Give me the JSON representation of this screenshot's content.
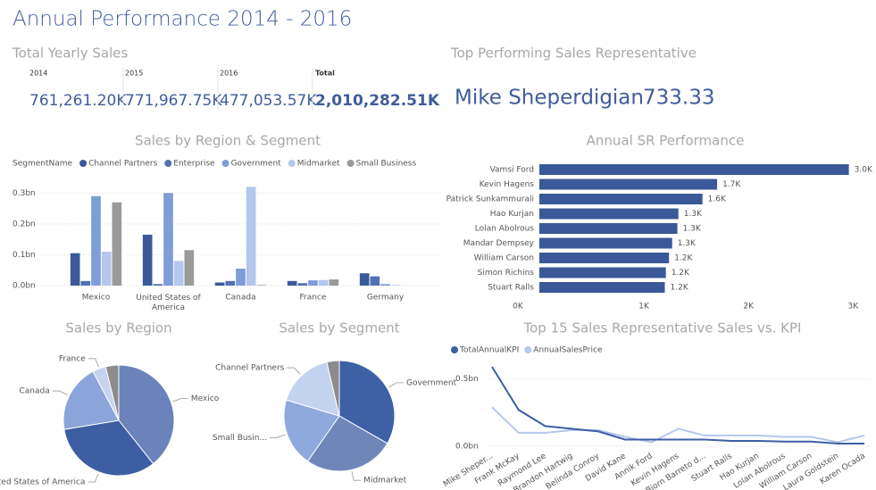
{
  "header": {
    "title": "Annual Performance 2014 - 2016"
  },
  "yearly_sales": {
    "title": "Total Yearly Sales",
    "cards": [
      {
        "label": "2014",
        "value": "761,261.20K"
      },
      {
        "label": "2015",
        "value": "771,967.75K"
      },
      {
        "label": "2016",
        "value": "477,053.57K"
      },
      {
        "label": "Total",
        "value": "2,010,282.51K"
      }
    ]
  },
  "top_rep": {
    "title": "Top Performing Sales Representative",
    "name": "Mike Sheperdigian",
    "value": "733.33"
  },
  "chart_data": [
    {
      "type": "bar",
      "title": "Sales by Region & Segment",
      "legend_title": "SegmentName",
      "categories": [
        "Mexico",
        "United States of America",
        "Canada",
        "France",
        "Germany"
      ],
      "series": [
        {
          "name": "Channel Partners",
          "color": "#3b5998",
          "values": [
            0.105,
            0.165,
            0.01,
            0.015,
            0.04
          ]
        },
        {
          "name": "Enterprise",
          "color": "#5272b2",
          "values": [
            0.015,
            0.005,
            0.015,
            0.008,
            0.03
          ]
        },
        {
          "name": "Government",
          "color": "#7f9dd6",
          "values": [
            0.29,
            0.3,
            0.055,
            0.017,
            0.005
          ]
        },
        {
          "name": "Midmarket",
          "color": "#b4c7ec",
          "values": [
            0.11,
            0.08,
            0.32,
            0.018,
            0.002
          ]
        },
        {
          "name": "Small Business",
          "color": "#9a9a9a",
          "values": [
            0.27,
            0.115,
            0.002,
            0.02,
            0
          ]
        }
      ],
      "ylim": [
        0,
        0.35
      ],
      "yticks": [
        {
          "value": 0,
          "label": "0.0bn"
        },
        {
          "value": 0.1,
          "label": "0.1bn"
        },
        {
          "value": 0.2,
          "label": "0.2bn"
        },
        {
          "value": 0.3,
          "label": "0.3bn"
        }
      ],
      "grid": true
    },
    {
      "type": "hbar",
      "title": "Annual SR Performance",
      "color": "#3b5998",
      "categories": [
        "Vamsi Ford",
        "Kevin Hagens",
        "Patrick Sunkammurali",
        "Hao Kurjan",
        "Lolan Abolrous",
        "Mandar Dempsey",
        "William Carson",
        "Simon Richins",
        "Stuart Ralls"
      ],
      "values": [
        2960,
        1700,
        1560,
        1330,
        1320,
        1270,
        1240,
        1210,
        1200
      ],
      "value_labels": [
        "3.0K",
        "1.7K",
        "1.6K",
        "1.3K",
        "1.3K",
        "1.3K",
        "1.2K",
        "1.2K",
        "1.2K"
      ],
      "xlim": [
        0,
        3040
      ],
      "xticks": [
        {
          "value": 0,
          "label": "0K"
        },
        {
          "value": 1000,
          "label": "1K"
        },
        {
          "value": 2000,
          "label": "2K"
        },
        {
          "value": 3000,
          "label": "3K"
        }
      ],
      "grid": false
    },
    {
      "type": "pie",
      "title": "Sales by Region",
      "categories": [
        "Mexico",
        "United States of America",
        "Canada",
        "France",
        null
      ],
      "values": [
        0.79,
        0.665,
        0.4,
        0.078,
        0.077
      ],
      "colors": [
        "#6a83ba",
        "#3e5ea3",
        "#8aa5da",
        "#c5d3ef",
        "#8c8c8c"
      ]
    },
    {
      "type": "pie",
      "title": "Sales by Segment",
      "categories": [
        "Government",
        "Midmarket",
        "Small Busin...",
        "Channel Partners",
        null
      ],
      "values": [
        0.667,
        0.53,
        0.4,
        0.335,
        0.073
      ],
      "colors": [
        "#3e61a6",
        "#6f87b8",
        "#8ea9dc",
        "#c3d2ef",
        "#8c8c8c"
      ]
    },
    {
      "type": "line",
      "title": "Top 15 Sales Representative Sales vs. KPI",
      "categories": [
        "Mike Sheper...",
        "Frank McKay",
        "Raymond Lee",
        "Brandon Hartwig",
        "Belinda Conroy",
        "David Kane",
        "Annik Ford",
        "Kevin Hagens",
        "Bjorn Barreto d...",
        "Stuart Ralls",
        "Hao Kurjan",
        "Lolan Abolrous",
        "William Carson",
        "Laura Goldstein",
        "Karen Ocada"
      ],
      "series": [
        {
          "name": "TotalAnnualKPI",
          "color": "#3e5ea3",
          "values": [
            0.59,
            0.27,
            0.15,
            0.13,
            0.11,
            0.05,
            0.05,
            0.05,
            0.05,
            0.04,
            0.04,
            0.035,
            0.035,
            0.02,
            0.02
          ]
        },
        {
          "name": "AnnualSalesPrice",
          "color": "#b4c7ec",
          "values": [
            0.29,
            0.1,
            0.1,
            0.12,
            0.12,
            0.07,
            0.03,
            0.13,
            0.08,
            0.08,
            0.08,
            0.07,
            0.07,
            0.03,
            0.08
          ]
        }
      ],
      "ylim": [
        0,
        0.63
      ],
      "yticks": [
        {
          "value": 0,
          "label": "0.0bn"
        },
        {
          "value": 0.5,
          "label": "0.5bn"
        }
      ],
      "grid": true
    }
  ]
}
